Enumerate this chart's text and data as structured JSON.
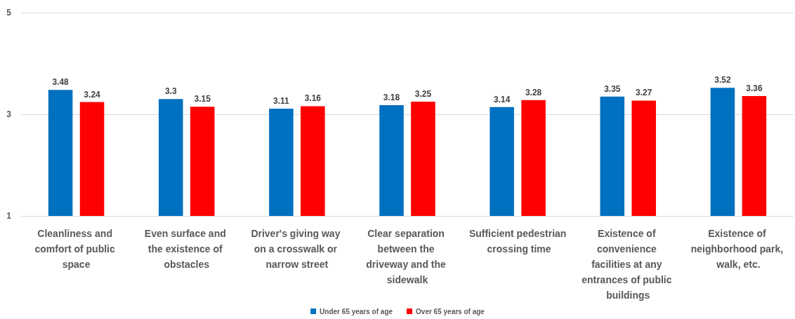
{
  "chart_data": {
    "type": "bar",
    "categories": [
      "Cleanliness and comfort of public space",
      "Even surface and the existence of obstacles",
      "Driver's giving way on a crosswalk or narrow street",
      "Clear separation between the driveway and the sidewalk",
      "Sufficient pedestrian crossing time",
      "Existence of convenience facilities at any entrances of public buildings",
      "Existence of neighborhood park, walk, etc."
    ],
    "series": [
      {
        "name": "Under 65 years of age",
        "color": "#0070c0",
        "values": [
          3.48,
          3.3,
          3.11,
          3.18,
          3.14,
          3.35,
          3.52
        ]
      },
      {
        "name": "Over 65 years of age",
        "color": "#ff0000",
        "values": [
          3.24,
          3.15,
          3.16,
          3.25,
          3.28,
          3.27,
          3.36
        ]
      }
    ],
    "ylim": [
      1,
      5
    ],
    "yticks": [
      1,
      3,
      5
    ],
    "grid": "y",
    "legend": "bottom",
    "data_labels": true
  }
}
